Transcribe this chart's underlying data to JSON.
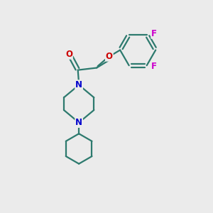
{
  "bg_color": "#ebebeb",
  "bond_color": "#2d7a6e",
  "N_color": "#0000cc",
  "O_color": "#cc0000",
  "F_color": "#cc00cc",
  "line_width": 1.6,
  "font_size_atom": 8.5,
  "xlim": [
    0,
    10
  ],
  "ylim": [
    0,
    10
  ]
}
